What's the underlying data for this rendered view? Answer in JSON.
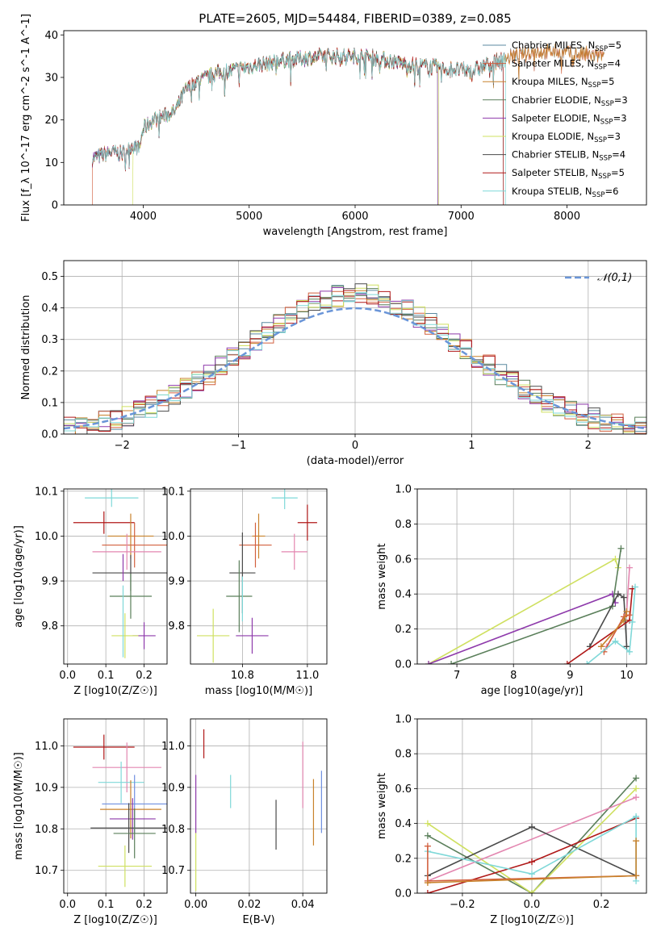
{
  "figure": {
    "title": "PLATE=2605, MJD=54484, FIBERID=0389, z=0.085"
  },
  "colors": {
    "Chabrier MILES": "#5b8aa0",
    "Salpeter MILES": "#d2603f",
    "Kroupa MILES": "#c8822c",
    "Chabrier ELODIE": "#5a7f5a",
    "Salpeter ELODIE": "#8e3aab",
    "Kroupa ELODIE": "#cfe060",
    "Chabrier STELIB": "#4a4a4a",
    "Salpeter STELIB": "#b01818",
    "Kroupa STELIB": "#7fd8d8",
    "pink": "#e386b0",
    "blue": "#6f8fe0",
    "gauss": "#6a95d8"
  },
  "chart_data": [
    {
      "id": "spectrum",
      "type": "line",
      "title": "PLATE=2605, MJD=54484, FIBERID=0389, z=0.085",
      "xlabel": "wavelength [Angstrom, rest frame]",
      "ylabel": "Flux [f_λ 10^-17 erg cm^-2 s^-1 A^-1]",
      "xlim": [
        3250,
        8750
      ],
      "ylim": [
        0,
        41
      ],
      "xticks": [
        4000,
        5000,
        6000,
        7000,
        8000
      ],
      "yticks": [
        0,
        10,
        20,
        30,
        40
      ],
      "legend": [
        "Chabrier MILES, N_SSP=5",
        "Salpeter MILES, N_SSP=4",
        "Kroupa MILES, N_SSP=5",
        "Chabrier ELODIE, N_SSP=3",
        "Salpeter ELODIE, N_SSP=3",
        "Kroupa ELODIE, N_SSP=3",
        "Chabrier STELIB, N_SSP=4",
        "Salpeter STELIB, N_SSP=5",
        "Kroupa STELIB, N_SSP=6"
      ],
      "legend_loc": "right",
      "continuum": [
        [
          3520,
          11
        ],
        [
          3700,
          12.5
        ],
        [
          3800,
          12
        ],
        [
          3900,
          14
        ],
        [
          3960,
          13
        ],
        [
          4000,
          18
        ],
        [
          4100,
          20
        ],
        [
          4200,
          21
        ],
        [
          4300,
          22
        ],
        [
          4400,
          27
        ],
        [
          4500,
          29
        ],
        [
          4700,
          31
        ],
        [
          4900,
          32
        ],
        [
          5100,
          33
        ],
        [
          5300,
          34
        ],
        [
          5500,
          34.5
        ],
        [
          5700,
          35
        ],
        [
          5900,
          35
        ],
        [
          6100,
          35
        ],
        [
          6300,
          34
        ],
        [
          6500,
          33
        ],
        [
          6700,
          32.5
        ],
        [
          6900,
          32
        ],
        [
          7100,
          31.5
        ],
        [
          7300,
          33.5
        ],
        [
          7500,
          35
        ],
        [
          7700,
          36
        ],
        [
          7900,
          36
        ],
        [
          8100,
          35.5
        ],
        [
          8350,
          35
        ]
      ]
    },
    {
      "id": "residuals",
      "type": "line",
      "xlabel": "(data-model)/error",
      "ylabel": "Normed distribution",
      "xlim": [
        -2.5,
        2.5
      ],
      "ylim": [
        0,
        0.55
      ],
      "xticks": [
        -2,
        -1,
        0,
        1,
        2
      ],
      "yticks": [
        0.0,
        0.1,
        0.2,
        0.3,
        0.4,
        0.5
      ],
      "legend": "N(0,1)",
      "legend_loc": "upper right",
      "gaussian_sigma": 1
    },
    {
      "id": "age_vs_Z",
      "type": "scatter",
      "xlabel": "Z [log10(Z/Z☉)]",
      "ylabel": "age  [log10(age/yr)]",
      "xlim": [
        -0.01,
        0.26
      ],
      "ylim": [
        9.715,
        10.105
      ],
      "xticks": [
        0.0,
        0.1,
        0.2
      ],
      "yticks": [
        9.8,
        9.9,
        10.0,
        10.1
      ],
      "points": [
        {
          "model": "Salpeter STELIB",
          "x": 0.095,
          "y": 10.03,
          "xerr": 0.08,
          "yerr": 0.025
        },
        {
          "model": "Kroupa STELIB",
          "x": 0.115,
          "y": 10.085,
          "xerr": 0.07,
          "yerr": 0.02
        },
        {
          "model": "Kroupa MILES",
          "x": 0.165,
          "y": 10.0,
          "xerr": 0.06,
          "yerr": 0.05
        },
        {
          "model": "Salpeter MILES",
          "x": 0.175,
          "y": 9.98,
          "xerr": 0.085,
          "yerr": 0.05
        },
        {
          "model": "pink",
          "x": 0.155,
          "y": 9.965,
          "xerr": 0.09,
          "yerr": 0.04
        },
        {
          "model": "Chabrier STELIB",
          "x": 0.165,
          "y": 9.918,
          "xerr": 0.1,
          "yerr": 0.04
        },
        {
          "model": "Chabrier ELODIE",
          "x": 0.165,
          "y": 9.866,
          "xerr": 0.055,
          "yerr": 0.05
        },
        {
          "model": "Salpeter ELODIE",
          "x": 0.2,
          "y": 9.778,
          "xerr": 0.03,
          "yerr": 0.03
        },
        {
          "model": "Kroupa ELODIE",
          "x": 0.15,
          "y": 9.778,
          "xerr": 0.035,
          "yerr": 0.05
        },
        {
          "model": "Salpeter ELODIE",
          "x": 0.145,
          "y": 9.93,
          "xerr": 0.0,
          "yerr": 0.03
        },
        {
          "model": "Kroupa STELIB",
          "x": 0.145,
          "y": 9.81,
          "xerr": 0.0,
          "yerr": 0.08
        }
      ]
    },
    {
      "id": "age_vs_mass",
      "type": "scatter",
      "xlabel": "mass [log10(M/M☉)]",
      "ylabel": "",
      "xlim": [
        10.64,
        11.06
      ],
      "ylim": [
        9.715,
        10.105
      ],
      "xticks": [
        10.8,
        11.0
      ],
      "yticks": [
        9.8,
        9.9,
        10.0,
        10.1
      ],
      "points": [
        {
          "model": "Salpeter STELIB",
          "x": 11.0,
          "y": 10.03,
          "xerr": 0.03,
          "yerr": 0.04
        },
        {
          "model": "Kroupa STELIB",
          "x": 10.93,
          "y": 10.085,
          "xerr": 0.04,
          "yerr": 0.025
        },
        {
          "model": "Kroupa MILES",
          "x": 10.85,
          "y": 10.0,
          "xerr": 0.02,
          "yerr": 0.05
        },
        {
          "model": "Salpeter MILES",
          "x": 10.84,
          "y": 9.98,
          "xerr": 0.05,
          "yerr": 0.05
        },
        {
          "model": "pink",
          "x": 10.96,
          "y": 9.965,
          "xerr": 0.04,
          "yerr": 0.04
        },
        {
          "model": "Chabrier STELIB",
          "x": 10.8,
          "y": 9.918,
          "xerr": 0.04,
          "yerr": 0.09
        },
        {
          "model": "Chabrier ELODIE",
          "x": 10.79,
          "y": 9.866,
          "xerr": 0.04,
          "yerr": 0.08
        },
        {
          "model": "Salpeter ELODIE",
          "x": 10.83,
          "y": 9.778,
          "xerr": 0.05,
          "yerr": 0.04
        },
        {
          "model": "Kroupa ELODIE",
          "x": 10.71,
          "y": 9.778,
          "xerr": 0.05,
          "yerr": 0.06
        },
        {
          "model": "Kroupa STELIB",
          "x": 10.8,
          "y": 9.86,
          "xerr": 0.0,
          "yerr": 0.05
        }
      ]
    },
    {
      "id": "weight_vs_age",
      "type": "line",
      "xlabel": "age  [log10(age/yr)]",
      "ylabel": "mass weight",
      "xlim": [
        6.3,
        10.35
      ],
      "ylim": [
        0,
        1.0
      ],
      "xticks": [
        7,
        8,
        9,
        10
      ],
      "yticks": [
        0.0,
        0.2,
        0.4,
        0.6,
        0.8,
        1.0
      ],
      "series": [
        {
          "model": "Kroupa ELODIE",
          "points": [
            [
              6.5,
              0
            ],
            [
              9.8,
              0.6
            ],
            [
              9.85,
              0.55
            ]
          ]
        },
        {
          "model": "Salpeter ELODIE",
          "points": [
            [
              6.5,
              0
            ],
            [
              9.75,
              0.4
            ],
            [
              9.8,
              0.35
            ]
          ]
        },
        {
          "model": "Chabrier ELODIE",
          "points": [
            [
              6.9,
              0
            ],
            [
              9.75,
              0.33
            ],
            [
              9.9,
              0.66
            ]
          ]
        },
        {
          "model": "Chabrier STELIB",
          "points": [
            [
              9.35,
              0.1
            ],
            [
              9.85,
              0.4
            ],
            [
              9.95,
              0.38
            ],
            [
              10.0,
              0.1
            ]
          ]
        },
        {
          "model": "Salpeter STELIB",
          "points": [
            [
              8.95,
              0
            ],
            [
              10.05,
              0.25
            ],
            [
              10.1,
              0.43
            ]
          ]
        },
        {
          "model": "pink",
          "points": [
            [
              9.65,
              0.1
            ],
            [
              10.0,
              0.3
            ],
            [
              10.05,
              0.55
            ]
          ]
        },
        {
          "model": "Salpeter MILES",
          "points": [
            [
              9.6,
              0.07
            ],
            [
              9.95,
              0.27
            ],
            [
              10.05,
              0.28
            ]
          ]
        },
        {
          "model": "Kroupa STELIB",
          "points": [
            [
              9.3,
              0
            ],
            [
              9.8,
              0.13
            ],
            [
              10.05,
              0.07
            ],
            [
              10.1,
              0.24
            ],
            [
              10.15,
              0.44
            ]
          ]
        },
        {
          "model": "Kroupa MILES",
          "points": [
            [
              9.55,
              0.1
            ],
            [
              9.95,
              0.25
            ],
            [
              10.0,
              0.3
            ]
          ]
        }
      ]
    },
    {
      "id": "mass_vs_Z",
      "type": "scatter",
      "xlabel": "Z [log10(Z/Z☉)]",
      "ylabel": "mass [log10(M/M☉)]",
      "xlim": [
        -0.01,
        0.26
      ],
      "ylim": [
        10.645,
        11.065
      ],
      "xticks": [
        0.0,
        0.1,
        0.2
      ],
      "yticks": [
        10.7,
        10.8,
        10.9,
        11.0
      ],
      "points": [
        {
          "model": "Salpeter STELIB",
          "x": 0.095,
          "y": 10.997,
          "xerr": 0.08,
          "yerr": 0.03
        },
        {
          "model": "pink",
          "x": 0.155,
          "y": 10.948,
          "xerr": 0.09,
          "yerr": 0.06
        },
        {
          "model": "Kroupa STELIB",
          "x": 0.14,
          "y": 10.912,
          "xerr": 0.06,
          "yerr": 0.05
        },
        {
          "model": "blue",
          "x": 0.175,
          "y": 10.86,
          "xerr": 0.085,
          "yerr": 0.07
        },
        {
          "model": "Kroupa MILES",
          "x": 0.165,
          "y": 10.847,
          "xerr": 0.08,
          "yerr": 0.07
        },
        {
          "model": "Salpeter ELODIE",
          "x": 0.17,
          "y": 10.824,
          "xerr": 0.06,
          "yerr": 0.05
        },
        {
          "model": "Chabrier STELIB",
          "x": 0.16,
          "y": 10.802,
          "xerr": 0.1,
          "yerr": 0.06
        },
        {
          "model": "Chabrier ELODIE",
          "x": 0.175,
          "y": 10.789,
          "xerr": 0.055,
          "yerr": 0.06
        },
        {
          "model": "Kroupa ELODIE",
          "x": 0.15,
          "y": 10.71,
          "xerr": 0.07,
          "yerr": 0.05
        }
      ]
    },
    {
      "id": "mass_vs_EBV",
      "type": "scatter",
      "xlabel": "E(B-V)",
      "ylabel": "",
      "xlim": [
        -0.002,
        0.049
      ],
      "ylim": [
        10.645,
        11.065
      ],
      "xticks": [
        0.0,
        0.02,
        0.04
      ],
      "yticks": [
        10.7,
        10.8,
        10.9,
        11.0
      ],
      "points": [
        {
          "model": "Salpeter STELIB",
          "x": 0.003,
          "y": 11.005,
          "yerr": 0.035
        },
        {
          "model": "Salpeter ELODIE",
          "x": 0.0,
          "y": 10.86,
          "yerr": 0.07
        },
        {
          "model": "Kroupa ELODIE",
          "x": 0.0,
          "y": 10.72,
          "yerr": 0.07
        },
        {
          "model": "Kroupa STELIB",
          "x": 0.013,
          "y": 10.89,
          "yerr": 0.04
        },
        {
          "model": "Chabrier STELIB",
          "x": 0.03,
          "y": 10.81,
          "yerr": 0.06
        },
        {
          "model": "pink",
          "x": 0.04,
          "y": 10.93,
          "yerr": 0.08
        },
        {
          "model": "Kroupa MILES",
          "x": 0.044,
          "y": 10.84,
          "yerr": 0.08
        },
        {
          "model": "blue",
          "x": 0.047,
          "y": 10.865,
          "yerr": 0.075
        }
      ]
    },
    {
      "id": "weight_vs_Z",
      "type": "line",
      "xlabel": "Z [log10(Z/Z☉)]",
      "ylabel": "mass weight",
      "xlim": [
        -0.33,
        0.33
      ],
      "ylim": [
        0,
        1.0
      ],
      "xticks": [
        -0.2,
        0.0,
        0.2
      ],
      "yticks": [
        0.0,
        0.2,
        0.4,
        0.6,
        0.8,
        1.0
      ],
      "series": [
        {
          "model": "Chabrier ELODIE",
          "points": [
            [
              -0.3,
              0.33
            ],
            [
              0.0,
              0.0
            ],
            [
              0.3,
              0.66
            ]
          ]
        },
        {
          "model": "Kroupa ELODIE",
          "points": [
            [
              -0.3,
              0.4
            ],
            [
              0.0,
              0.0
            ],
            [
              0.3,
              0.6
            ]
          ]
        },
        {
          "model": "pink",
          "points": [
            [
              -0.3,
              0.07
            ],
            [
              0.3,
              0.55
            ]
          ]
        },
        {
          "model": "Chabrier STELIB",
          "points": [
            [
              -0.3,
              0.1
            ],
            [
              0.0,
              0.38
            ],
            [
              0.3,
              0.1
            ]
          ]
        },
        {
          "model": "Salpeter STELIB",
          "points": [
            [
              -0.3,
              0.0
            ],
            [
              0.0,
              0.18
            ],
            [
              0.3,
              0.43
            ]
          ]
        },
        {
          "model": "Kroupa STELIB",
          "points": [
            [
              -0.3,
              0.24
            ],
            [
              0.0,
              0.11
            ],
            [
              0.3,
              0.44
            ],
            [
              0.3,
              0.07
            ]
          ]
        },
        {
          "model": "Salpeter MILES",
          "points": [
            [
              -0.3,
              0.27
            ],
            [
              -0.3,
              0.07
            ],
            [
              0.3,
              0.1
            ]
          ]
        },
        {
          "model": "Kroupa MILES",
          "points": [
            [
              -0.3,
              0.06
            ],
            [
              0.3,
              0.1
            ],
            [
              0.3,
              0.3
            ]
          ]
        }
      ]
    }
  ]
}
